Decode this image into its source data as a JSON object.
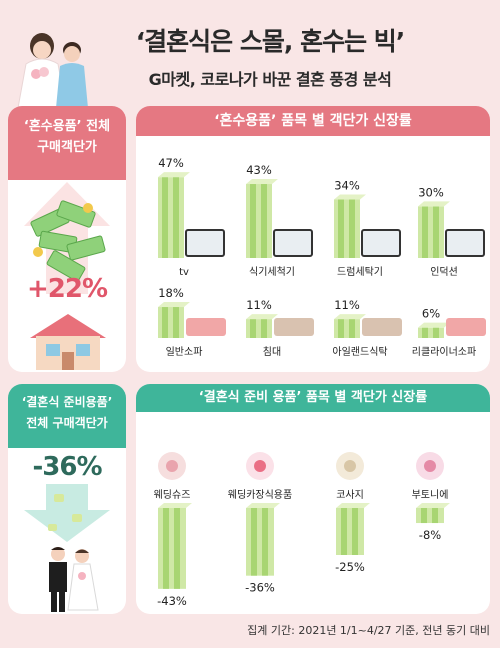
{
  "header": {
    "title": "‘결혼식은 스몰, 혼수는 빅’",
    "subtitle": "G마켓, 코로나가 바꾼 결혼 풍경 분석"
  },
  "top_left": {
    "heading_line1": "‘혼수용품’ 전체",
    "heading_line2": "구매객단가",
    "value": "+22%"
  },
  "bottom_left": {
    "heading_line1": "‘결혼식 준비용품’",
    "heading_line2": "전체 구매객단가",
    "value": "-36%"
  },
  "top_panel": {
    "title": "‘혼수용품’ 품목 별 객단가 신장률"
  },
  "bottom_panel": {
    "title": "‘결혼식 준비 용품’ 품목 별 객단가 신장률"
  },
  "footnote": "집계 기간: 2021년 1/1~4/27 기준, 전년 동기 대비",
  "colors": {
    "background": "#f9e6e6",
    "pink_accent": "#e57882",
    "green_accent": "#3fb59a",
    "bar_light": "#cfe8a6",
    "bar_mid": "#a8d572"
  },
  "chart_data": [
    {
      "type": "bar",
      "title": "‘혼수용품’ 품목 별 객단가 신장률",
      "categories": [
        "tv",
        "식기세척기",
        "드럼세탁기",
        "인덕션",
        "일반소파",
        "침대",
        "아일랜드식탁",
        "리클라이너소파"
      ],
      "values": [
        47,
        43,
        34,
        30,
        18,
        11,
        11,
        6
      ],
      "labels": [
        "47%",
        "43%",
        "34%",
        "30%",
        "18%",
        "11%",
        "11%",
        "6%"
      ],
      "unit": "%"
    },
    {
      "type": "bar",
      "title": "‘결혼식 준비 용품’ 품목 별 객단가 신장률",
      "categories": [
        "웨딩슈즈",
        "웨딩카장식용품",
        "코사지",
        "부토니에"
      ],
      "values": [
        -43,
        -36,
        -25,
        -8
      ],
      "labels": [
        "-43%",
        "-36%",
        "-25%",
        "-8%"
      ],
      "unit": "%"
    }
  ]
}
